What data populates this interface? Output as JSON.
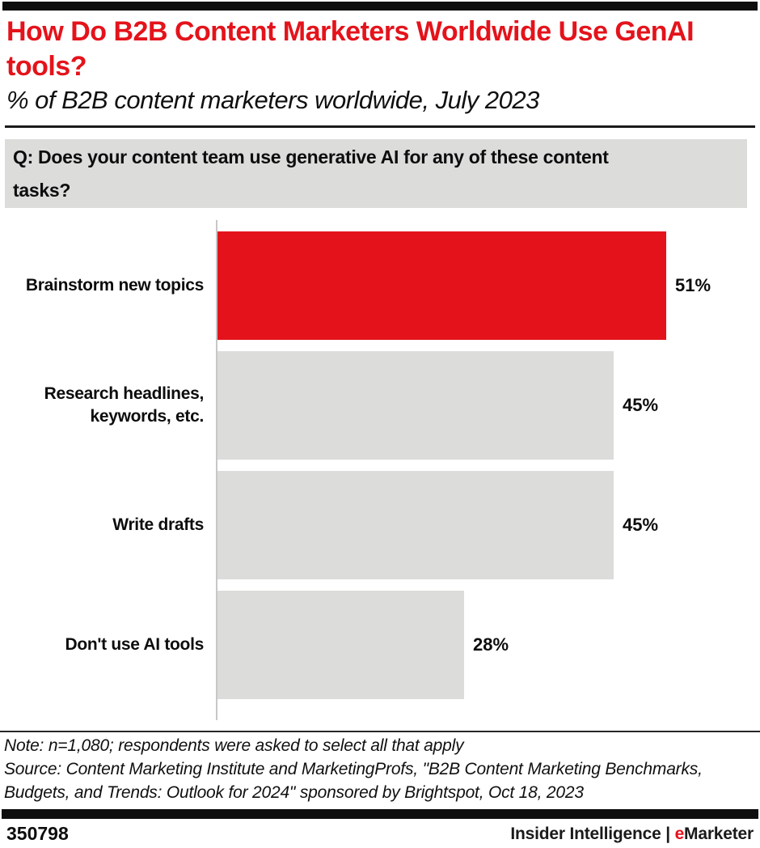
{
  "header": {
    "title": "How Do B2B Content Marketers Worldwide Use GenAI tools?",
    "subtitle": "% of B2B content marketers worldwide, July 2023"
  },
  "question": {
    "line1": "Q: Does your content team use generative AI for any of these content",
    "line2": "tasks?"
  },
  "chart_data": {
    "type": "bar",
    "orientation": "horizontal",
    "title": "How Do B2B Content Marketers Worldwide Use GenAI tools?",
    "subtitle": "% of B2B content marketers worldwide, July 2023",
    "categories": [
      "Brainstorm new topics",
      "Research headlines, keywords, etc.",
      "Write drafts",
      "Don't use AI tools"
    ],
    "values": [
      51,
      45,
      45,
      28
    ],
    "value_labels": [
      "51%",
      "45%",
      "45%",
      "28%"
    ],
    "unit": "%",
    "xlim": [
      0,
      51
    ],
    "grid": false,
    "legend": false,
    "bar_colors": [
      "#e4131b",
      "#dcdcda",
      "#dcdcda",
      "#dcdcda"
    ],
    "highlight_color": "#e4131b",
    "default_color": "#dcdcda",
    "highlight_index": 0
  },
  "notes": {
    "note": "Note: n=1,080; respondents were asked to select all that apply",
    "source": "Source: Content Marketing Institute and MarketingProfs, \"B2B Content Marketing Benchmarks, Budgets, and Trends: Outlook for 2024\" sponsored by Brightspot, Oct 18, 2023"
  },
  "footer": {
    "chart_id": "350798",
    "brand_left": "Insider Intelligence",
    "separator": " | ",
    "brand_e": "e",
    "brand_rest": "Marketer"
  },
  "colors": {
    "accent_red": "#e4131b",
    "bar_gray": "#dcdcda",
    "question_box_bg": "#dcdcdb",
    "axis_gray": "#c7c7c7",
    "bar_black": "#0e0e0e"
  }
}
